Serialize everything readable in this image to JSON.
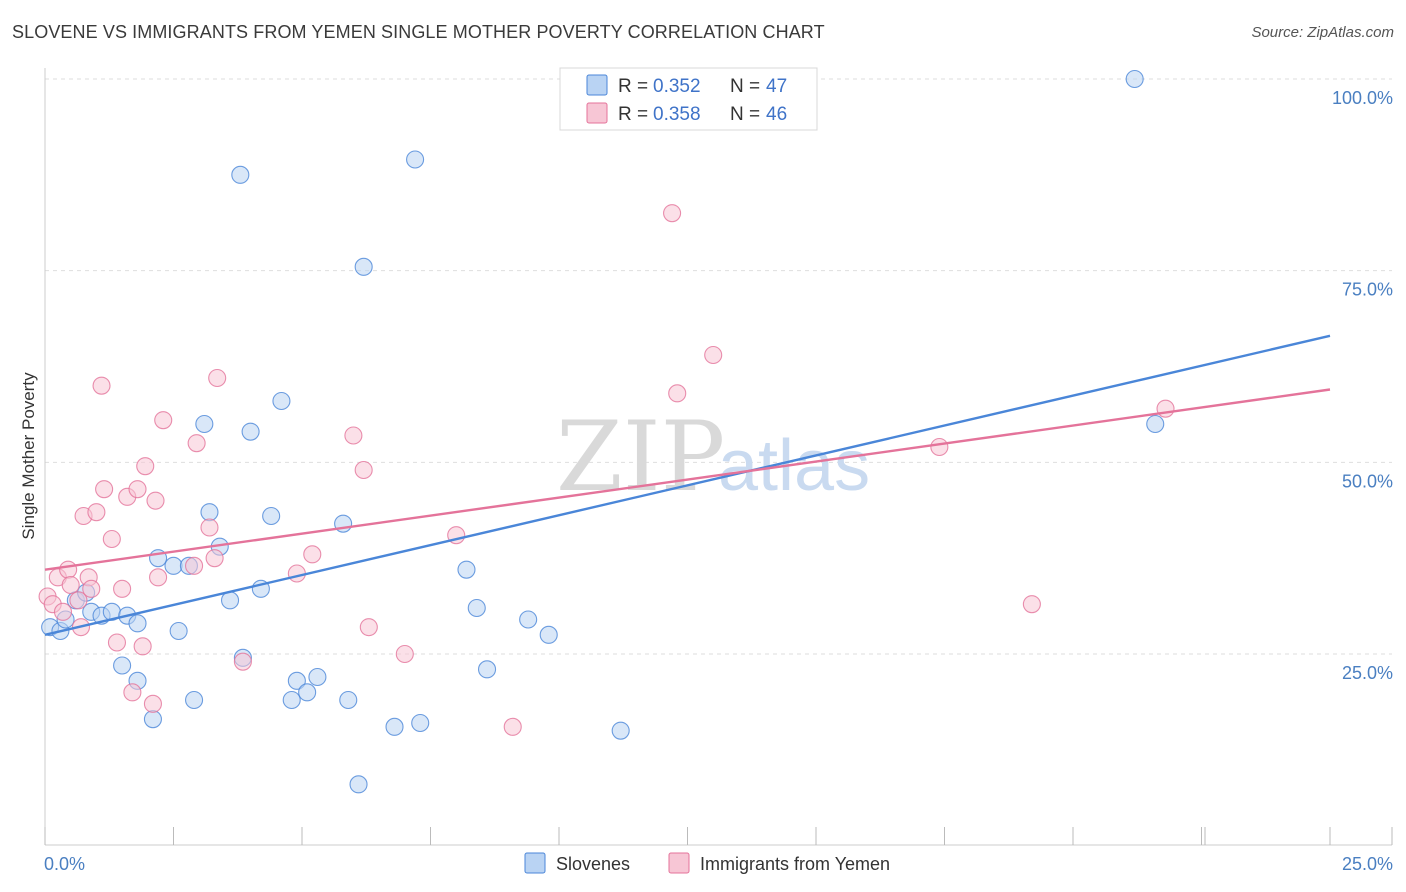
{
  "header": {
    "title": "SLOVENE VS IMMIGRANTS FROM YEMEN SINGLE MOTHER POVERTY CORRELATION CHART",
    "source": "Source: ZipAtlas.com"
  },
  "watermark": {
    "zip": "ZIP",
    "atlas": "atlas"
  },
  "colors": {
    "blue": "#4a86d8",
    "blue_fill": "#b9d3f3",
    "pink": "#e4739a",
    "pink_fill": "#f7c6d5",
    "axis_text": "#4a7fc1"
  },
  "chart_data": {
    "type": "scatter",
    "title": "SLOVENE VS IMMIGRANTS FROM YEMEN SINGLE MOTHER POVERTY CORRELATION CHART",
    "xlabel": "",
    "ylabel": "Single Mother Poverty",
    "xlim": [
      0,
      25
    ],
    "ylim": [
      0,
      102
    ],
    "x_tick_labels": [
      {
        "value": 0,
        "label": "0.0%"
      },
      {
        "value": 25,
        "label": "25.0%"
      }
    ],
    "y_tick_labels": [
      {
        "value": 25,
        "label": "25.0%"
      },
      {
        "value": 50,
        "label": "50.0%"
      },
      {
        "value": 75,
        "label": "75.0%"
      },
      {
        "value": 100,
        "label": "100.0%"
      }
    ],
    "grid": true,
    "legend": [
      {
        "series": "Slovenes",
        "r_label": "R =",
        "r_value": "0.352",
        "n_label": "N =",
        "n_value": "47"
      },
      {
        "series": "Immigrants from Yemen",
        "r_label": "R =",
        "r_value": "0.358",
        "n_label": "N =",
        "n_value": "46"
      }
    ],
    "series": [
      {
        "name": "Slovenes",
        "color": "#4a86d8",
        "trend": {
          "x": [
            0,
            25
          ],
          "y": [
            27.5,
            66.5
          ]
        },
        "points": [
          [
            0.1,
            28.5
          ],
          [
            0.3,
            28
          ],
          [
            0.4,
            29.5
          ],
          [
            0.6,
            32
          ],
          [
            0.8,
            33
          ],
          [
            0.9,
            30.5
          ],
          [
            1.1,
            30
          ],
          [
            1.3,
            30.5
          ],
          [
            1.6,
            30
          ],
          [
            1.8,
            29
          ],
          [
            1.5,
            23.5
          ],
          [
            1.8,
            21.5
          ],
          [
            2.1,
            16.5
          ],
          [
            2.2,
            37.5
          ],
          [
            2.5,
            36.5
          ],
          [
            2.6,
            28
          ],
          [
            2.8,
            36.5
          ],
          [
            2.9,
            19
          ],
          [
            3.1,
            55
          ],
          [
            3.2,
            43.5
          ],
          [
            3.4,
            39
          ],
          [
            3.6,
            32
          ],
          [
            3.8,
            87.5
          ],
          [
            3.85,
            24.5
          ],
          [
            4.0,
            54
          ],
          [
            4.2,
            33.5
          ],
          [
            4.4,
            43
          ],
          [
            4.6,
            58
          ],
          [
            4.8,
            19
          ],
          [
            4.9,
            21.5
          ],
          [
            5.1,
            20
          ],
          [
            5.3,
            22
          ],
          [
            5.8,
            42
          ],
          [
            5.9,
            19
          ],
          [
            6.2,
            75.5
          ],
          [
            6.1,
            8
          ],
          [
            6.8,
            15.5
          ],
          [
            7.2,
            89.5
          ],
          [
            7.3,
            16
          ],
          [
            8.2,
            36
          ],
          [
            8.4,
            31
          ],
          [
            8.6,
            23
          ],
          [
            9.4,
            29.5
          ],
          [
            9.8,
            27.5
          ],
          [
            11.2,
            15
          ],
          [
            21.2,
            100
          ],
          [
            21.6,
            55
          ]
        ]
      },
      {
        "name": "Immigrants from Yemen",
        "color": "#e4739a",
        "trend": {
          "x": [
            0,
            25
          ],
          "y": [
            36,
            59.5
          ]
        },
        "points": [
          [
            0.05,
            32.5
          ],
          [
            0.15,
            31.5
          ],
          [
            0.25,
            35
          ],
          [
            0.35,
            30.5
          ],
          [
            0.45,
            36
          ],
          [
            0.5,
            34
          ],
          [
            0.65,
            32
          ],
          [
            0.7,
            28.5
          ],
          [
            0.75,
            43
          ],
          [
            0.85,
            35
          ],
          [
            0.9,
            33.5
          ],
          [
            1.0,
            43.5
          ],
          [
            1.1,
            60
          ],
          [
            1.15,
            46.5
          ],
          [
            1.3,
            40
          ],
          [
            1.4,
            26.5
          ],
          [
            1.5,
            33.5
          ],
          [
            1.6,
            45.5
          ],
          [
            1.7,
            20
          ],
          [
            1.8,
            46.5
          ],
          [
            1.9,
            26
          ],
          [
            1.95,
            49.5
          ],
          [
            2.1,
            18.5
          ],
          [
            2.15,
            45
          ],
          [
            2.2,
            35
          ],
          [
            2.3,
            55.5
          ],
          [
            2.9,
            36.5
          ],
          [
            2.95,
            52.5
          ],
          [
            3.2,
            41.5
          ],
          [
            3.3,
            37.5
          ],
          [
            3.35,
            61
          ],
          [
            3.85,
            24
          ],
          [
            4.9,
            35.5
          ],
          [
            5.2,
            38
          ],
          [
            6.0,
            53.5
          ],
          [
            6.2,
            49
          ],
          [
            6.3,
            28.5
          ],
          [
            7.0,
            25
          ],
          [
            8.0,
            40.5
          ],
          [
            9.1,
            15.5
          ],
          [
            12.2,
            82.5
          ],
          [
            12.3,
            59
          ],
          [
            13.0,
            64
          ],
          [
            17.4,
            52
          ],
          [
            19.2,
            31.5
          ],
          [
            21.8,
            57
          ]
        ]
      }
    ]
  }
}
